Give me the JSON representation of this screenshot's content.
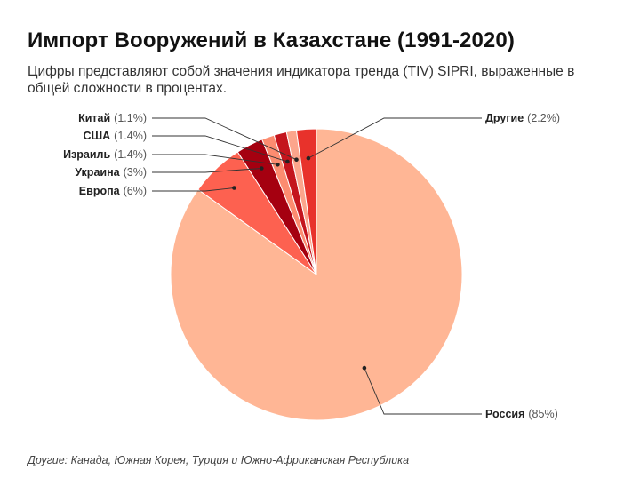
{
  "title": "Импорт Вооружений в Казахстане (1991-2020)",
  "subtitle": "Цифры представляют собой значения индикатора тренда (TIV) SIPRI, выраженные в общей сложности в процентах.",
  "note": "Другие: Канада, Южная Корея, Турция и  Южно-Африканская Республика",
  "chart_data": {
    "type": "pie",
    "slices": [
      {
        "label": "Россия",
        "value_text": "(85%)",
        "value": 85,
        "color": "#ffb695"
      },
      {
        "label": "Европа",
        "value_text": "(6%)",
        "value": 6,
        "color": "#fd6150"
      },
      {
        "label": "Украина",
        "value_text": "(3%)",
        "value": 3,
        "color": "#a50010"
      },
      {
        "label": "Израиль",
        "value_text": "(1.4%)",
        "value": 1.4,
        "color": "#fc8c70"
      },
      {
        "label": "США",
        "value_text": "(1.4%)",
        "value": 1.4,
        "color": "#c4151d"
      },
      {
        "label": "Китай",
        "value_text": "(1.1%)",
        "value": 1.1,
        "color": "#fca58c"
      },
      {
        "label": "Другие",
        "value_text": "(2.2%)",
        "value": 2.2,
        "color": "#e8322b"
      }
    ]
  }
}
